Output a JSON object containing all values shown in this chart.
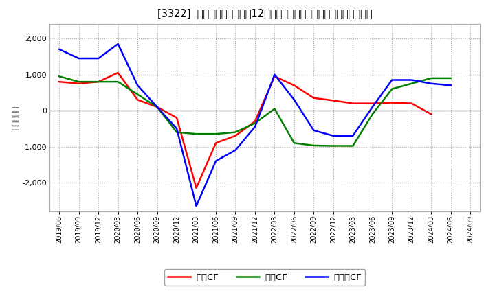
{
  "title": "[3322]  キャッシュフローの12か月移動合計の対前年同期増減額の推移",
  "ylabel": "（百万円）",
  "background_color": "#ffffff",
  "plot_bg_color": "#ffffff",
  "grid_color": "#aaaaaa",
  "x_labels": [
    "2019/06",
    "2019/09",
    "2019/12",
    "2020/03",
    "2020/06",
    "2020/09",
    "2020/12",
    "2021/03",
    "2021/06",
    "2021/09",
    "2021/12",
    "2022/03",
    "2022/06",
    "2022/09",
    "2022/12",
    "2023/03",
    "2023/06",
    "2023/09",
    "2023/12",
    "2024/03",
    "2024/06",
    "2024/09"
  ],
  "operating_cf": [
    800,
    750,
    800,
    1050,
    300,
    100,
    -200,
    -2150,
    -900,
    -700,
    -300,
    950,
    700,
    350,
    280,
    200,
    200,
    220,
    200,
    -100,
    null,
    null
  ],
  "investing_cf": [
    950,
    800,
    800,
    800,
    450,
    100,
    -600,
    -650,
    -650,
    -600,
    -350,
    50,
    -900,
    -970,
    -980,
    -980,
    -100,
    600,
    750,
    900,
    900,
    null
  ],
  "free_cf": [
    1700,
    1450,
    1450,
    1850,
    700,
    100,
    -500,
    -2650,
    -1400,
    -1100,
    -450,
    1000,
    300,
    -550,
    -700,
    -700,
    100,
    850,
    850,
    750,
    700,
    null
  ],
  "operating_color": "#ff0000",
  "investing_color": "#008000",
  "free_color": "#0000ff",
  "ylim": [
    -2800,
    2400
  ],
  "yticks": [
    -2000,
    -1000,
    0,
    1000,
    2000
  ],
  "legend_labels": [
    "営業CF",
    "投資CF",
    "フリーCF"
  ],
  "line_width": 1.8
}
